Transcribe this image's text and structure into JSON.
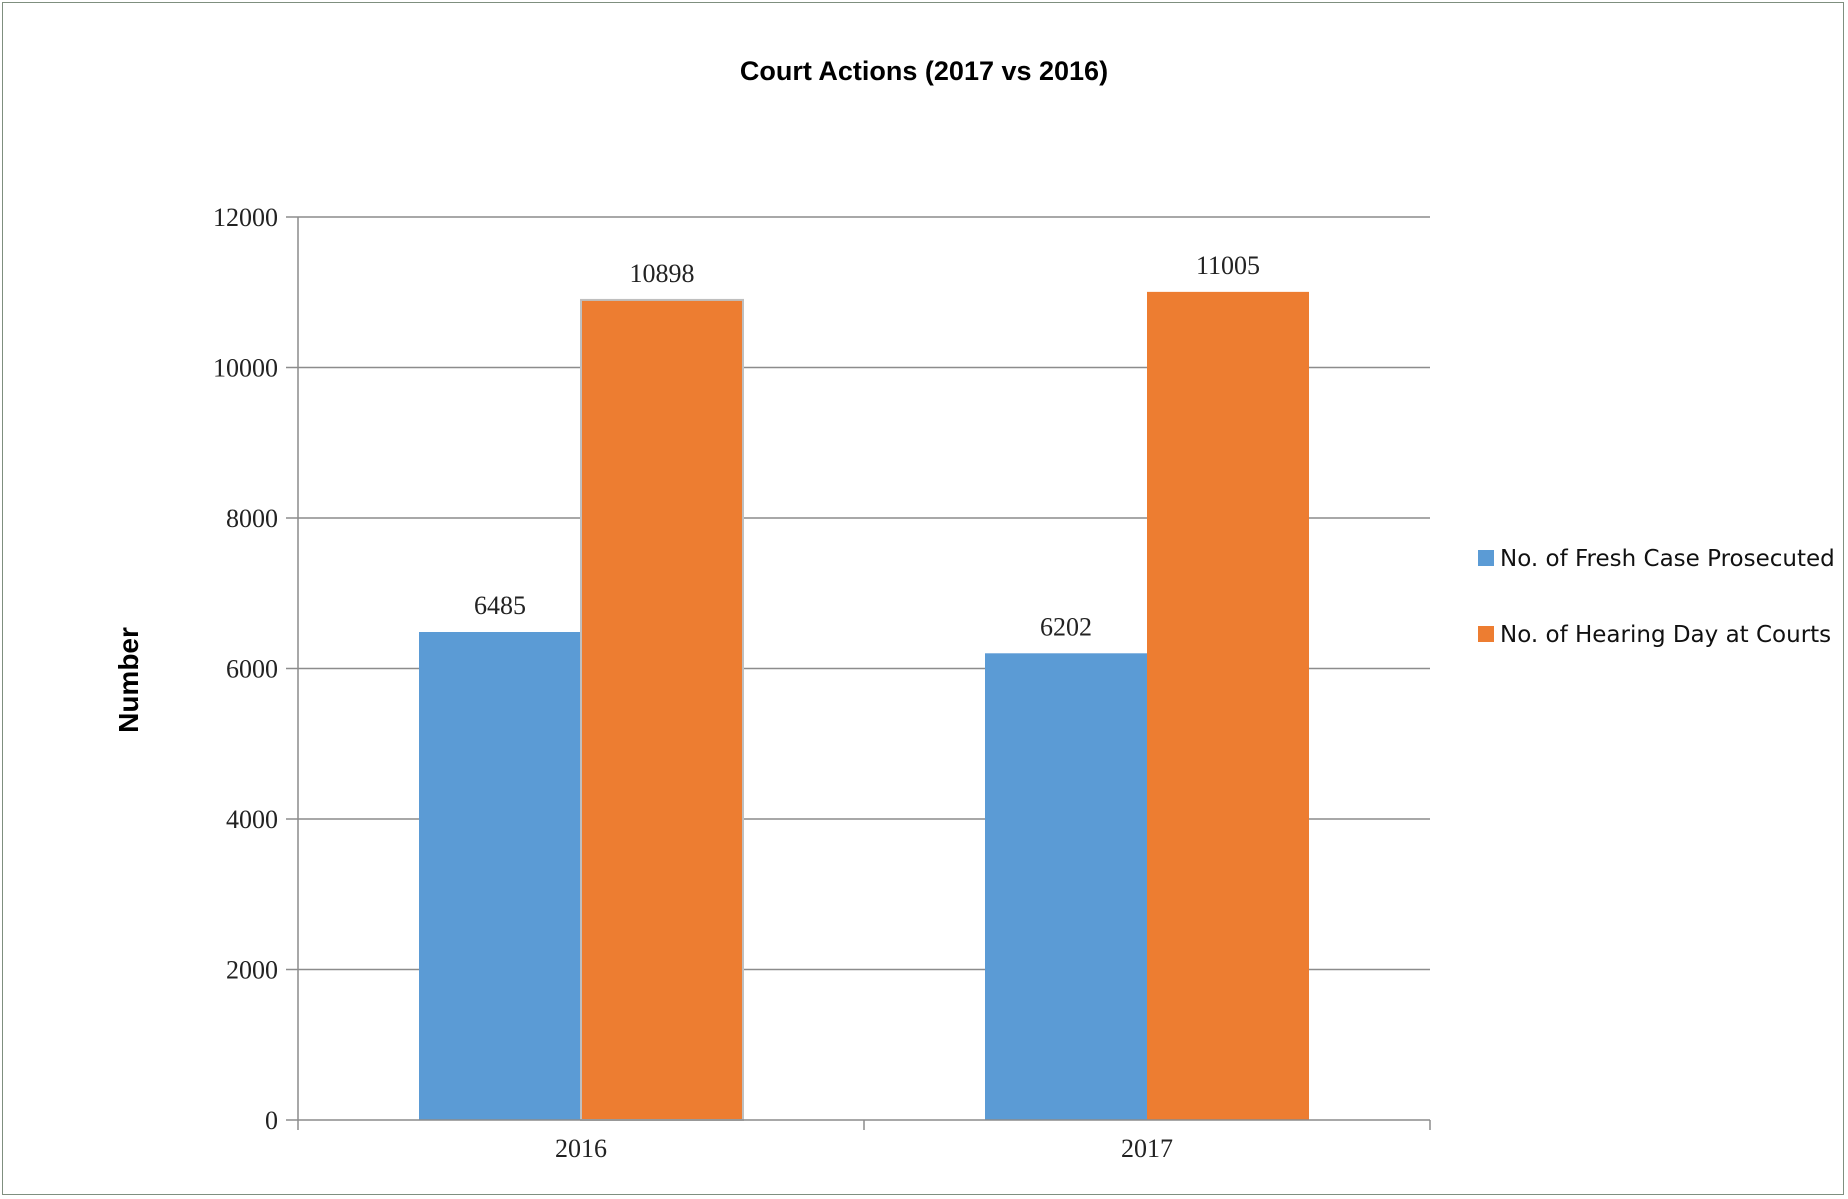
{
  "chart_data": {
    "type": "bar",
    "title": "Court Actions (2017 vs 2016)",
    "ylabel": "Number",
    "xlabel": "",
    "categories": [
      "2016",
      "2017"
    ],
    "series": [
      {
        "name": "No. of Fresh Case Prosecuted",
        "color": "#5b9bd5",
        "values": [
          6485,
          6202
        ]
      },
      {
        "name": "No. of Hearing Day at Courts",
        "color": "#ed7d31",
        "values": [
          10898,
          11005
        ]
      }
    ],
    "ylim": [
      0,
      12000
    ],
    "yticks": [
      0,
      2000,
      4000,
      6000,
      8000,
      10000,
      12000
    ],
    "grid": true,
    "legend_position": "right",
    "data_labels": true
  }
}
